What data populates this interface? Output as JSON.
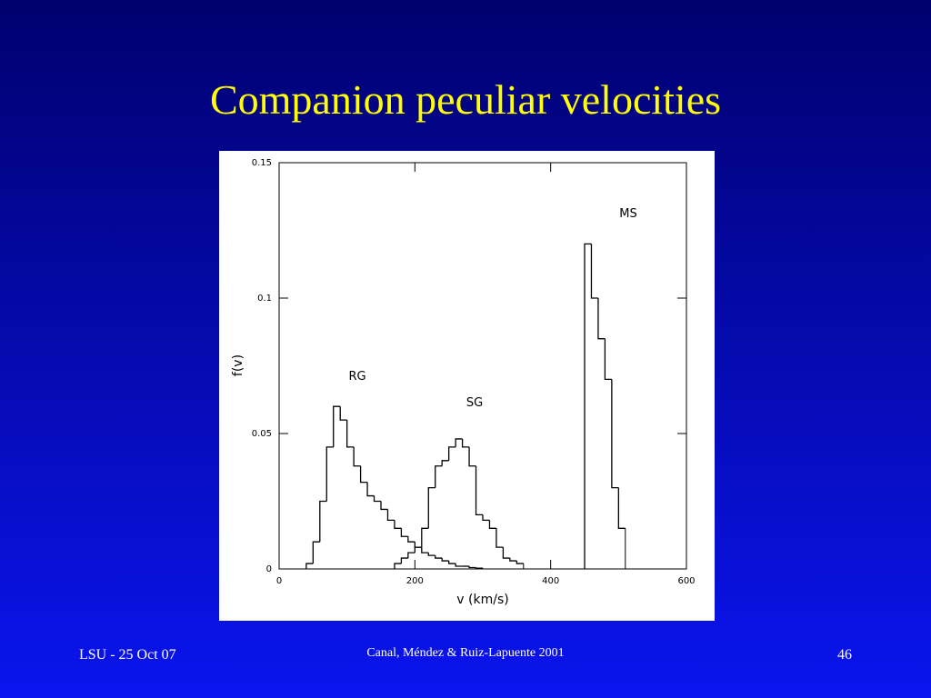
{
  "slide": {
    "title": "Companion peculiar velocities",
    "footer_left": "LSU - 25 Oct 07",
    "footer_center": "Canal, Méndez & Ruiz-Lapuente  2001",
    "footer_right": "46"
  },
  "chart_data": {
    "type": "histogram",
    "xlabel": "v (km/s)",
    "ylabel": "f(v)",
    "bins": [
      40,
      50,
      60,
      70,
      80,
      90,
      100,
      110,
      120,
      130,
      140,
      150,
      160,
      170,
      180,
      190,
      200,
      210,
      220,
      230,
      240,
      250,
      260,
      270,
      280,
      290,
      300,
      310,
      320,
      330,
      340,
      350,
      360,
      370,
      380,
      390,
      400,
      410,
      420,
      430,
      440,
      450,
      460,
      470,
      480,
      490,
      500,
      510,
      520
    ],
    "series": [
      {
        "name": "RG",
        "color": "#000000",
        "values": [
          0.002,
          0.01,
          0.025,
          0.045,
          0.06,
          0.055,
          0.045,
          0.038,
          0.032,
          0.027,
          0.025,
          0.022,
          0.018,
          0.015,
          0.012,
          0.01,
          0.008,
          0.006,
          0.005,
          0.004,
          0.003,
          0.002,
          0.001,
          0.001,
          0.0005,
          0.0003,
          null,
          null,
          null,
          null,
          null,
          null,
          null,
          null,
          null,
          null,
          null,
          null,
          null,
          null,
          null,
          null,
          null,
          null,
          null,
          null,
          null,
          null
        ]
      },
      {
        "name": "SG",
        "color": "#000000",
        "values": [
          null,
          null,
          null,
          null,
          null,
          null,
          null,
          null,
          null,
          null,
          null,
          null,
          null,
          0.002,
          0.004,
          0.006,
          0.008,
          0.015,
          0.03,
          0.038,
          0.04,
          0.045,
          0.048,
          0.045,
          0.038,
          0.02,
          0.018,
          0.015,
          0.008,
          0.004,
          0.003,
          0.002,
          null,
          null,
          null,
          null,
          null,
          null,
          null,
          null,
          null,
          null,
          null,
          null,
          null,
          null,
          null,
          null
        ]
      },
      {
        "name": "MS",
        "color": "#000000",
        "values": [
          null,
          null,
          null,
          null,
          null,
          null,
          null,
          null,
          null,
          null,
          null,
          null,
          null,
          null,
          null,
          null,
          null,
          null,
          null,
          null,
          null,
          null,
          null,
          null,
          null,
          null,
          null,
          null,
          null,
          null,
          null,
          null,
          null,
          null,
          null,
          null,
          null,
          null,
          null,
          null,
          null,
          0.12,
          0.1,
          0.085,
          0.07,
          0.03,
          0.015,
          null
        ]
      }
    ],
    "xlim": [
      0,
      600
    ],
    "xticks": [
      0,
      200,
      400,
      600
    ],
    "ylim": [
      0,
      0.15
    ],
    "yticks": [
      0,
      0.05,
      0.1,
      0.15
    ]
  }
}
